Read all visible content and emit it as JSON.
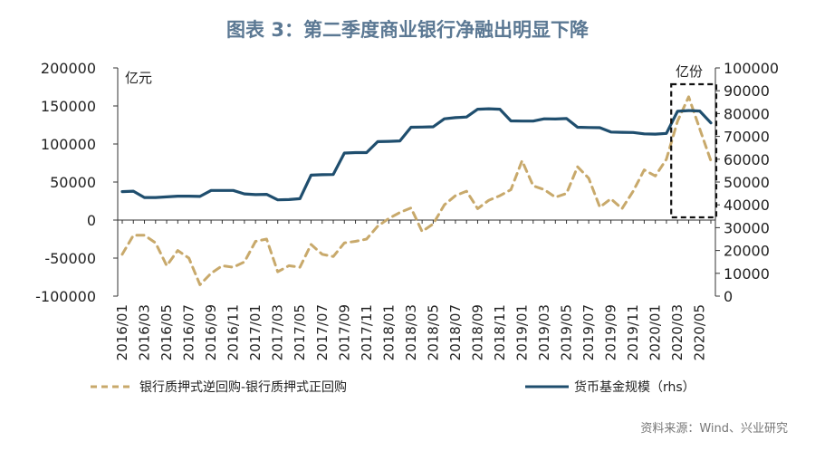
{
  "chart_data": {
    "type": "line",
    "title": "图表 3：第二季度商业银行净融出明显下降",
    "left_unit": "亿元",
    "right_unit": "亿份",
    "source": "资料来源：Wind、兴业研究",
    "x_tick_labels": [
      "2016/01",
      "2016/03",
      "2016/05",
      "2016/07",
      "2016/09",
      "2016/11",
      "2017/01",
      "2017/03",
      "2017/05",
      "2017/07",
      "2017/09",
      "2017/11",
      "2018/01",
      "2018/03",
      "2018/05",
      "2018/07",
      "2018/09",
      "2018/11",
      "2019/01",
      "2019/03",
      "2019/05",
      "2019/07",
      "2019/09",
      "2019/11",
      "2020/01",
      "2020/03",
      "2020/05"
    ],
    "y_left": {
      "range": [
        -100000,
        200000
      ],
      "ticks": [
        200000,
        150000,
        100000,
        50000,
        0,
        -50000,
        -100000
      ]
    },
    "y_right": {
      "range": [
        0,
        100000
      ],
      "ticks": [
        100000,
        90000,
        80000,
        70000,
        60000,
        50000,
        40000,
        30000,
        20000,
        10000,
        0
      ]
    },
    "x": [
      "2016/01",
      "2016/02",
      "2016/03",
      "2016/04",
      "2016/05",
      "2016/06",
      "2016/07",
      "2016/08",
      "2016/09",
      "2016/10",
      "2016/11",
      "2016/12",
      "2017/01",
      "2017/02",
      "2017/03",
      "2017/04",
      "2017/05",
      "2017/06",
      "2017/07",
      "2017/08",
      "2017/09",
      "2017/10",
      "2017/11",
      "2017/12",
      "2018/01",
      "2018/02",
      "2018/03",
      "2018/04",
      "2018/05",
      "2018/06",
      "2018/07",
      "2018/08",
      "2018/09",
      "2018/10",
      "2018/11",
      "2018/12",
      "2019/01",
      "2019/02",
      "2019/03",
      "2019/04",
      "2019/05",
      "2019/06",
      "2019/07",
      "2019/08",
      "2019/09",
      "2019/10",
      "2019/11",
      "2019/12",
      "2020/01",
      "2020/02",
      "2020/03",
      "2020/04",
      "2020/05",
      "2020/06"
    ],
    "series": [
      {
        "name": "银行质押式逆回购-银行质押式正回购",
        "axis": "left",
        "style": "dashed",
        "color": "#c8a96b",
        "values": [
          -45000,
          -20000,
          -20000,
          -30000,
          -60000,
          -40000,
          -50000,
          -85000,
          -70000,
          -60000,
          -62000,
          -55000,
          -28000,
          -25000,
          -68000,
          -60000,
          -62000,
          -32000,
          -45000,
          -48000,
          -30000,
          -28000,
          -25000,
          -8000,
          2000,
          10000,
          16000,
          -15000,
          -5000,
          20000,
          32000,
          38000,
          15000,
          26000,
          32000,
          40000,
          78000,
          45000,
          40000,
          30000,
          35000,
          70000,
          55000,
          17000,
          28000,
          15000,
          38000,
          66000,
          58000,
          80000,
          130000,
          162000,
          120000,
          78000
        ]
      },
      {
        "name": "货币基金规模（rhs）",
        "axis": "right",
        "style": "solid",
        "color": "#1f4e6e",
        "values": [
          45800,
          46000,
          43200,
          43200,
          43500,
          43800,
          43800,
          43700,
          46300,
          46300,
          46300,
          44800,
          44500,
          44600,
          42200,
          42300,
          42700,
          53000,
          53200,
          53300,
          62700,
          62900,
          62900,
          67700,
          67800,
          68000,
          74000,
          74100,
          74200,
          77700,
          78200,
          78500,
          81900,
          82100,
          81900,
          76800,
          76700,
          76700,
          77700,
          77600,
          77800,
          74000,
          73900,
          73800,
          71900,
          71800,
          71700,
          71100,
          71000,
          71300,
          81000,
          81300,
          81100,
          75900
        ]
      }
    ],
    "highlight_box": {
      "x_from": "2020/03",
      "x_to": "2020/06"
    },
    "legend_position": "bottom",
    "grid": false
  }
}
